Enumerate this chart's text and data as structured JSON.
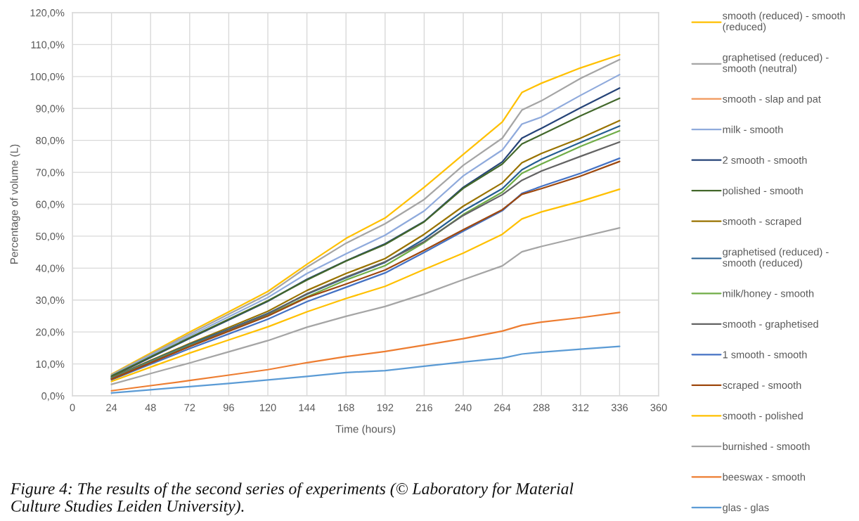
{
  "chart_data": {
    "type": "line",
    "xlabel": "Time (hours)",
    "ylabel": "Percentage of volume (L)",
    "x": [
      24,
      48,
      72,
      96,
      120,
      144,
      168,
      192,
      216,
      240,
      264,
      276,
      288,
      312,
      336
    ],
    "xlim": [
      0,
      360
    ],
    "xticks": [
      0,
      24,
      48,
      72,
      96,
      120,
      144,
      168,
      192,
      216,
      240,
      264,
      288,
      312,
      336,
      360
    ],
    "ylim": [
      0,
      120
    ],
    "yticks": [
      {
        "value": 0,
        "label": "0,0%"
      },
      {
        "value": 10,
        "label": "10,0%"
      },
      {
        "value": 20,
        "label": "20,0%"
      },
      {
        "value": 30,
        "label": "30,0%"
      },
      {
        "value": 40,
        "label": "40,0%"
      },
      {
        "value": 50,
        "label": "50,0%"
      },
      {
        "value": 60,
        "label": "60,0%"
      },
      {
        "value": 70,
        "label": "70,0%"
      },
      {
        "value": 80,
        "label": "80,0%"
      },
      {
        "value": 90,
        "label": "90,0%"
      },
      {
        "value": 100,
        "label": "100,0%"
      },
      {
        "value": 110,
        "label": "110,0%"
      },
      {
        "value": 120,
        "label": "120,0%"
      }
    ],
    "grid": true,
    "legend": "right",
    "series": [
      {
        "name": "smooth (reduced) - smooth (reduced)",
        "color": "#FFC000",
        "values": [
          6.8,
          13.4,
          20.0,
          26.3,
          32.7,
          41.2,
          49.3,
          55.7,
          65.3,
          75.6,
          85.8,
          95.0,
          97.9,
          102.7,
          106.8
        ]
      },
      {
        "name": "graphetised (reduced) - smooth (neutral)",
        "color": "#A5A5A5",
        "values": [
          6.6,
          13.0,
          19.4,
          25.6,
          31.8,
          40.3,
          47.8,
          53.9,
          61.5,
          72.2,
          80.7,
          89.5,
          92.4,
          99.4,
          105.3
        ]
      },
      {
        "name": "smooth - slap and pat",
        "color": "#F1975A",
        "values": [
          null,
          null,
          null,
          null,
          null,
          null,
          null,
          null,
          null,
          null,
          null,
          null,
          null,
          null,
          null
        ]
      },
      {
        "name": "milk - smooth",
        "color": "#8FAADC",
        "values": [
          6.3,
          12.6,
          18.8,
          24.8,
          30.8,
          38.3,
          44.5,
          50.3,
          57.9,
          68.9,
          77.0,
          85.1,
          87.3,
          94.1,
          100.6
        ]
      },
      {
        "name": "2 smooth - smooth",
        "color": "#264478",
        "values": [
          6.0,
          12.0,
          18.0,
          23.8,
          29.6,
          36.5,
          42.3,
          47.6,
          54.6,
          65.3,
          73.3,
          80.7,
          83.8,
          90.2,
          96.4
        ]
      },
      {
        "name": "polished - smooth",
        "color": "#43682B",
        "values": [
          6.2,
          12.2,
          18.2,
          24.0,
          29.8,
          36.3,
          42.2,
          47.4,
          54.5,
          65.0,
          72.6,
          78.9,
          81.8,
          87.7,
          93.2
        ]
      },
      {
        "name": "smooth - scraped",
        "color": "#997300",
        "values": [
          5.7,
          11.1,
          16.4,
          21.4,
          26.5,
          33.0,
          38.3,
          43.0,
          50.6,
          59.4,
          66.7,
          73.0,
          75.9,
          80.7,
          86.2
        ]
      },
      {
        "name": "graphetised (reduced) - smooth (reduced)",
        "color": "#255E91",
        "values": [
          5.6,
          10.9,
          16.1,
          20.9,
          25.8,
          31.8,
          37.0,
          41.8,
          49.1,
          57.9,
          64.9,
          70.8,
          74.1,
          79.4,
          84.5
        ]
      },
      {
        "name": "milk/honey - smooth",
        "color": "#70AD47",
        "values": [
          5.5,
          10.7,
          15.8,
          20.5,
          25.3,
          31.0,
          36.3,
          40.8,
          48.0,
          56.8,
          63.8,
          69.7,
          72.6,
          78.1,
          83.0
        ]
      },
      {
        "name": "smooth - graphetised",
        "color": "#636363",
        "values": [
          5.4,
          10.5,
          15.6,
          20.7,
          25.6,
          32.0,
          37.2,
          42.0,
          48.3,
          56.5,
          63.0,
          67.5,
          70.4,
          75.0,
          79.5
        ]
      },
      {
        "name": "1 smooth - smooth",
        "color": "#4472C4",
        "values": [
          5.0,
          9.9,
          14.8,
          19.4,
          24.0,
          29.5,
          34.0,
          38.5,
          44.9,
          51.6,
          58.0,
          63.4,
          65.6,
          69.7,
          74.4
        ]
      },
      {
        "name": "scraped - smooth",
        "color": "#9E480E",
        "values": [
          5.2,
          10.3,
          15.4,
          20.2,
          25.0,
          30.8,
          35.0,
          39.4,
          45.6,
          52.0,
          58.3,
          63.1,
          64.9,
          68.8,
          73.4
        ]
      },
      {
        "name": "smooth - polished",
        "color": "#FFC000",
        "values": [
          4.5,
          9.0,
          13.4,
          17.5,
          21.6,
          26.3,
          30.5,
          34.3,
          39.6,
          44.7,
          50.6,
          55.4,
          57.6,
          60.9,
          64.7
        ]
      },
      {
        "name": "burnished - smooth",
        "color": "#A5A5A5",
        "values": [
          3.6,
          7.0,
          10.3,
          13.8,
          17.3,
          21.5,
          24.9,
          28.0,
          31.9,
          36.4,
          40.7,
          45.1,
          46.8,
          49.7,
          52.6
        ]
      },
      {
        "name": "beeswax - smooth",
        "color": "#ED7D31",
        "values": [
          1.6,
          3.2,
          4.8,
          6.5,
          8.2,
          10.4,
          12.3,
          13.9,
          15.9,
          17.9,
          20.3,
          22.1,
          23.1,
          24.5,
          26.1
        ]
      },
      {
        "name": "glas - glas",
        "color": "#5B9BD5",
        "values": [
          0.9,
          1.9,
          2.9,
          3.9,
          5.0,
          6.1,
          7.3,
          7.9,
          9.3,
          10.6,
          11.8,
          13.1,
          13.7,
          14.6,
          15.5
        ]
      }
    ],
    "annotations": [
      "Figure 4: The results of the second series of experiments (© Laboratory for Material Culture Studies Leiden University)."
    ]
  }
}
